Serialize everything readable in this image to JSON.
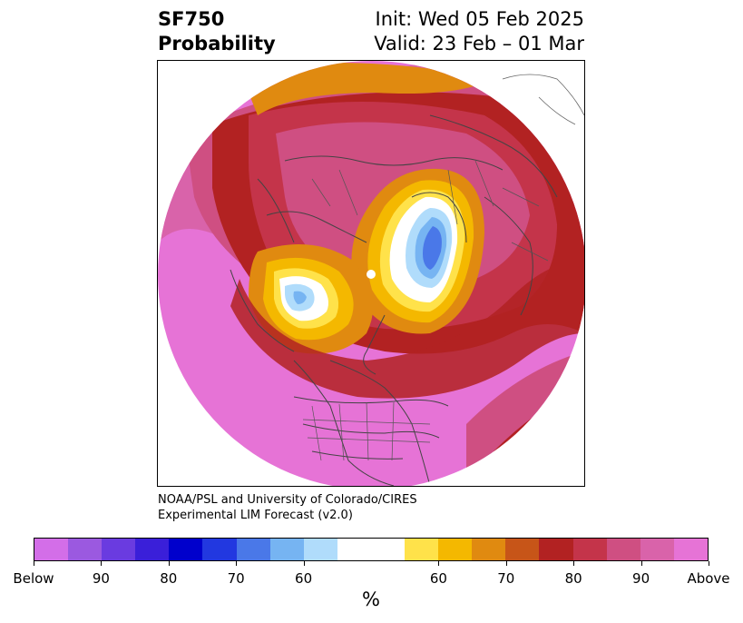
{
  "title": {
    "left_line1": "SF750",
    "left_line2": "Probability",
    "right_line1": "Init: Wed 05 Feb 2025",
    "right_line2": "Valid: 23 Feb – 01 Mar"
  },
  "credit": {
    "line1": "NOAA/PSL and University of Colorado/CIRES",
    "line2": "Experimental LIM Forecast (v2.0)"
  },
  "colorbar": {
    "unit": "%",
    "colors": [
      "#d36ee8",
      "#9b59e0",
      "#6a3be0",
      "#3a1fd9",
      "#0000cc",
      "#2238e0",
      "#4a78e8",
      "#76b4f2",
      "#b0dcfb",
      "#ffffff",
      "#ffffff",
      "#ffe24a",
      "#f4b800",
      "#e08a10",
      "#c75518",
      "#b22222",
      "#c4344a",
      "#cf4f82",
      "#d963aa",
      "#e673d6"
    ],
    "tick_labels": [
      "Below",
      "90",
      "80",
      "70",
      "60",
      "60",
      "70",
      "80",
      "90",
      "Above"
    ]
  },
  "map": {
    "projection": "north polar stereographic",
    "features": [
      "coastlines-icon",
      "country-borders-icon",
      "state-borders-icon"
    ]
  }
}
